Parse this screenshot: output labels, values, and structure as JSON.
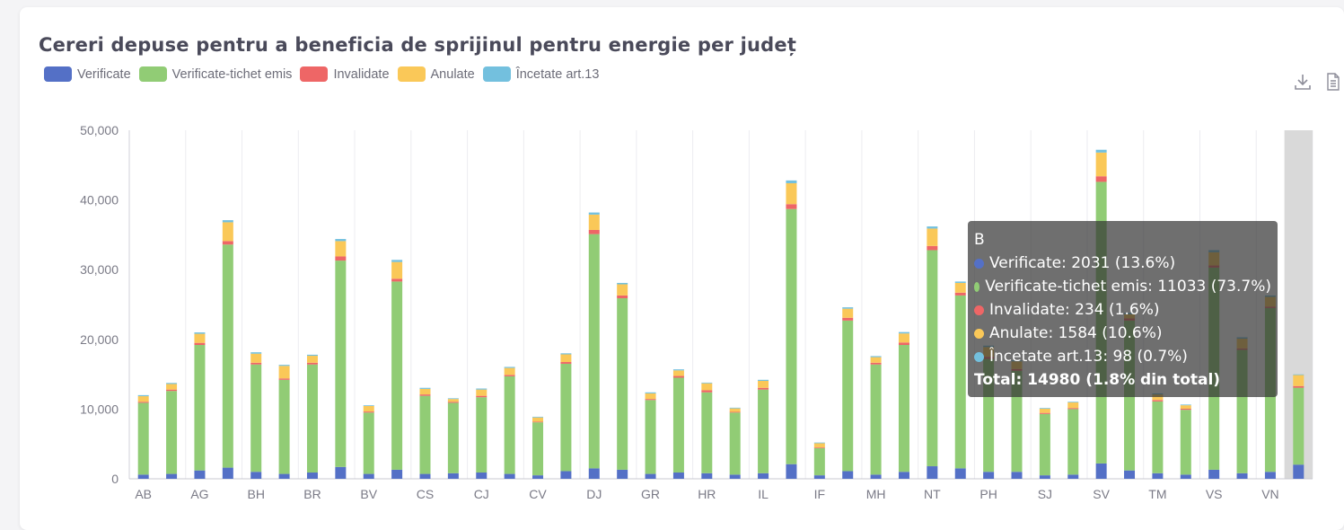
{
  "chart_data": {
    "type": "bar",
    "stacked": true,
    "title": "Cereri depuse pentru a beneficia de sprijinul pentru energie per județ",
    "ylim": [
      0,
      50000
    ],
    "yticks": [
      "0",
      "10,000",
      "20,000",
      "30,000",
      "40,000",
      "50,000"
    ],
    "categories": [
      "AB",
      "AG",
      "BH",
      "BR",
      "BV",
      "CS",
      "CJ",
      "CV",
      "DJ",
      "GR",
      "HR",
      "IL",
      "IF",
      "MH",
      "NT",
      "PH",
      "SJ",
      "SV",
      "TM",
      "VS",
      "VN"
    ],
    "bars": [
      {
        "verificate": 600,
        "tichet": 10300,
        "invalidate": 150,
        "anulate": 800,
        "incetate": 150
      },
      {
        "verificate": 700,
        "tichet": 11900,
        "invalidate": 200,
        "anulate": 800,
        "incetate": 150
      },
      {
        "verificate": 1200,
        "tichet": 18000,
        "invalidate": 300,
        "anulate": 1300,
        "incetate": 200
      },
      {
        "verificate": 1600,
        "tichet": 32000,
        "invalidate": 500,
        "anulate": 2700,
        "incetate": 300
      },
      {
        "verificate": 1000,
        "tichet": 15400,
        "invalidate": 250,
        "anulate": 1300,
        "incetate": 200
      },
      {
        "verificate": 700,
        "tichet": 13500,
        "invalidate": 200,
        "anulate": 1800,
        "incetate": 150
      },
      {
        "verificate": 900,
        "tichet": 15500,
        "invalidate": 250,
        "anulate": 1000,
        "incetate": 150
      },
      {
        "verificate": 1700,
        "tichet": 29600,
        "invalidate": 600,
        "anulate": 2200,
        "incetate": 300
      },
      {
        "verificate": 700,
        "tichet": 8800,
        "invalidate": 150,
        "anulate": 800,
        "incetate": 100
      },
      {
        "verificate": 1300,
        "tichet": 27000,
        "invalidate": 400,
        "anulate": 2400,
        "incetate": 300
      },
      {
        "verificate": 700,
        "tichet": 11200,
        "invalidate": 200,
        "anulate": 800,
        "incetate": 150
      },
      {
        "verificate": 800,
        "tichet": 10100,
        "invalidate": 150,
        "anulate": 400,
        "incetate": 100
      },
      {
        "verificate": 900,
        "tichet": 10800,
        "invalidate": 200,
        "anulate": 900,
        "incetate": 150
      },
      {
        "verificate": 700,
        "tichet": 14000,
        "invalidate": 200,
        "anulate": 1000,
        "incetate": 150
      },
      {
        "verificate": 500,
        "tichet": 7600,
        "invalidate": 100,
        "anulate": 600,
        "incetate": 100
      },
      {
        "verificate": 1100,
        "tichet": 15400,
        "invalidate": 250,
        "anulate": 1100,
        "incetate": 150
      },
      {
        "verificate": 1500,
        "tichet": 33600,
        "invalidate": 600,
        "anulate": 2200,
        "incetate": 300
      },
      {
        "verificate": 1300,
        "tichet": 24600,
        "invalidate": 400,
        "anulate": 1600,
        "incetate": 200
      },
      {
        "verificate": 700,
        "tichet": 10600,
        "invalidate": 150,
        "anulate": 800,
        "incetate": 150
      },
      {
        "verificate": 900,
        "tichet": 13600,
        "invalidate": 250,
        "anulate": 800,
        "incetate": 150
      },
      {
        "verificate": 800,
        "tichet": 11600,
        "invalidate": 300,
        "anulate": 1000,
        "incetate": 100
      },
      {
        "verificate": 600,
        "tichet": 8900,
        "invalidate": 100,
        "anulate": 500,
        "incetate": 100
      },
      {
        "verificate": 800,
        "tichet": 12000,
        "invalidate": 250,
        "anulate": 1000,
        "incetate": 150
      },
      {
        "verificate": 2100,
        "tichet": 36600,
        "invalidate": 700,
        "anulate": 3000,
        "incetate": 400
      },
      {
        "verificate": 500,
        "tichet": 3900,
        "invalidate": 100,
        "anulate": 600,
        "incetate": 100
      },
      {
        "verificate": 1100,
        "tichet": 21600,
        "invalidate": 400,
        "anulate": 1300,
        "incetate": 200
      },
      {
        "verificate": 600,
        "tichet": 15800,
        "invalidate": 250,
        "anulate": 800,
        "incetate": 150
      },
      {
        "verificate": 1000,
        "tichet": 18200,
        "invalidate": 350,
        "anulate": 1300,
        "incetate": 200
      },
      {
        "verificate": 1800,
        "tichet": 31000,
        "invalidate": 600,
        "anulate": 2500,
        "incetate": 300
      },
      {
        "verificate": 1500,
        "tichet": 24800,
        "invalidate": 400,
        "anulate": 1400,
        "incetate": 200
      },
      {
        "verificate": 1000,
        "tichet": 16200,
        "invalidate": 300,
        "anulate": 1400,
        "incetate": 200
      },
      {
        "verificate": 1000,
        "tichet": 14500,
        "invalidate": 250,
        "anulate": 1100,
        "incetate": 150
      },
      {
        "verificate": 500,
        "tichet": 8800,
        "invalidate": 150,
        "anulate": 600,
        "incetate": 100
      },
      {
        "verificate": 600,
        "tichet": 9400,
        "invalidate": 150,
        "anulate": 800,
        "incetate": 100
      },
      {
        "verificate": 2200,
        "tichet": 40400,
        "invalidate": 800,
        "anulate": 3400,
        "incetate": 400
      },
      {
        "verificate": 1200,
        "tichet": 21500,
        "invalidate": 300,
        "anulate": 600,
        "incetate": 200
      },
      {
        "verificate": 800,
        "tichet": 10300,
        "invalidate": 200,
        "anulate": 800,
        "incetate": 150
      },
      {
        "verificate": 600,
        "tichet": 9300,
        "invalidate": 150,
        "anulate": 500,
        "incetate": 100
      },
      {
        "verificate": 1300,
        "tichet": 29000,
        "invalidate": 300,
        "anulate": 1900,
        "incetate": 300
      },
      {
        "verificate": 800,
        "tichet": 17700,
        "invalidate": 200,
        "anulate": 1400,
        "incetate": 200
      },
      {
        "verificate": 1000,
        "tichet": 23500,
        "invalidate": 200,
        "anulate": 1400,
        "incetate": 200
      },
      {
        "verificate": 2031,
        "tichet": 11033,
        "invalidate": 234,
        "anulate": 1584,
        "incetate": 98
      }
    ],
    "series": [
      {
        "key": "verificate",
        "name": "Verificate",
        "color": "#5470c6"
      },
      {
        "key": "tichet",
        "name": "Verificate-tichet emis",
        "color": "#91cc75"
      },
      {
        "key": "invalidate",
        "name": "Invalidate",
        "color": "#ee6666"
      },
      {
        "key": "anulate",
        "name": "Anulate",
        "color": "#fac858"
      },
      {
        "key": "incetate",
        "name": "Încetate art.13",
        "color": "#73c0de"
      }
    ],
    "highlighted_index": 41
  },
  "tooltip": {
    "title": "B",
    "rows": [
      {
        "text": "Verificate: 2031 (13.6%)",
        "color": "#5470c6"
      },
      {
        "text": "Verificate-tichet emis: 11033 (73.7%)",
        "color": "#91cc75"
      },
      {
        "text": "Invalidate: 234 (1.6%)",
        "color": "#ee6666"
      },
      {
        "text": "Anulate: 1584 (10.6%)",
        "color": "#fac858"
      },
      {
        "text": "Încetate art.13: 98 (0.7%)",
        "color": "#73c0de"
      }
    ],
    "total": "Total: 14980 (1.8% din total)"
  },
  "toolbox": {
    "download_icon": "download-icon",
    "data_view_icon": "data-view-icon"
  }
}
